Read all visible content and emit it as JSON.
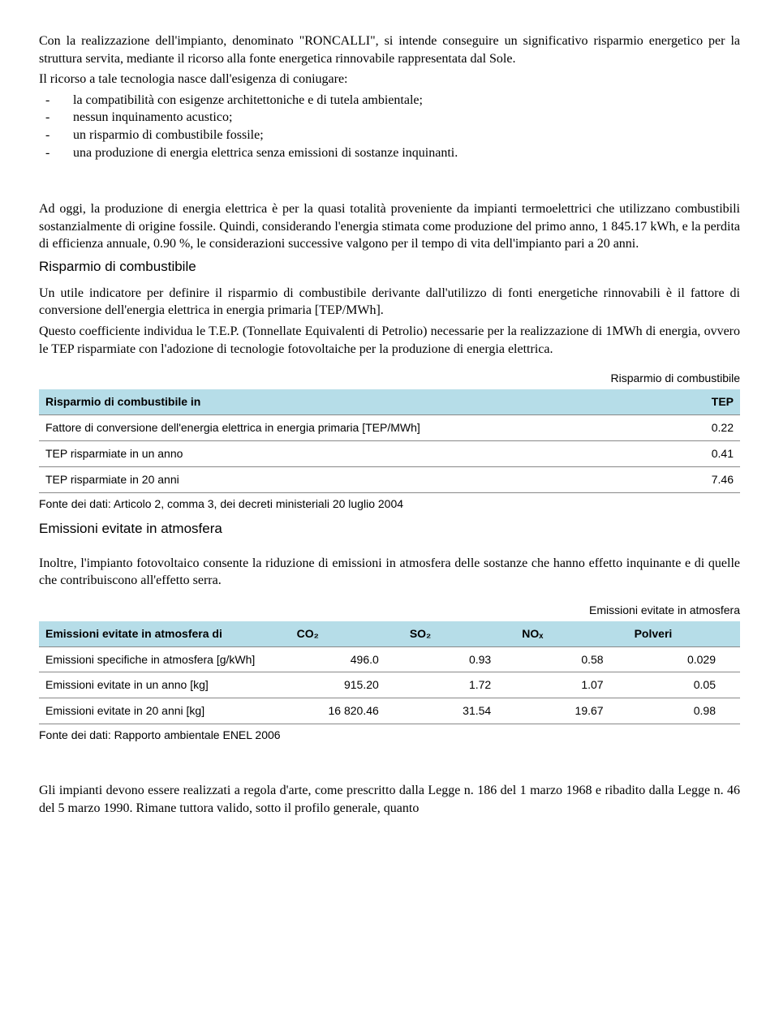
{
  "para1": "Con la realizzazione dell'impianto, denominato \"RONCALLI\", si intende conseguire un significativo risparmio energetico per la struttura servita, mediante il ricorso alla fonte energetica rinnovabile rappresentata dal Sole.",
  "para2": "Il ricorso a tale tecnologia nasce dall'esigenza di coniugare:",
  "bullets": [
    "la compatibilità con esigenze architettoniche e di tutela ambientale;",
    "nessun inquinamento acustico;",
    "un risparmio di combustibile fossile;",
    "una produzione di energia elettrica senza emissioni di sostanze inquinanti."
  ],
  "para3": "Ad oggi, la produzione di energia elettrica è per la quasi totalità proveniente da impianti termoelettrici che utilizzano combustibili sostanzialmente di origine fossile. Quindi, considerando l'energia stimata come produzione del primo anno, 1 845.17 kWh, e la perdita di efficienza annuale, 0.90 %, le considerazioni successive valgono per il tempo di vita dell'impianto pari a 20 anni.",
  "sec1_title": "Risparmio di combustibile",
  "para4a": "Un utile indicatore per definire il risparmio di combustibile derivante dall'utilizzo di fonti energetiche rinnovabili è il fattore di conversione dell'energia elettrica in energia primaria [TEP/MWh].",
  "para4b": "Questo coefficiente individua le T.E.P. (Tonnellate Equivalenti di Petrolio) necessarie per la realizzazione di 1MWh di energia, ovvero le TEP risparmiate con l'adozione di tecnologie fotovoltaiche per la produzione di energia elettrica.",
  "table1": {
    "caption": "Risparmio di combustibile",
    "header": {
      "c0": "Risparmio di combustibile in",
      "c1": "TEP"
    },
    "rows": [
      {
        "label": "Fattore di conversione dell'energia elettrica in energia primaria [TEP/MWh]",
        "val": "0.22"
      },
      {
        "label": "TEP risparmiate in un anno",
        "val": "0.41"
      },
      {
        "label": "TEP risparmiate in 20 anni",
        "val": "7.46"
      }
    ],
    "footnote": "Fonte dei dati: Articolo 2, comma 3, dei decreti ministeriali 20 luglio 2004"
  },
  "sec2_title": "Emissioni evitate in atmosfera",
  "para5": "Inoltre, l'impianto fotovoltaico consente la riduzione di emissioni in atmosfera delle sostanze che hanno effetto inquinante e di quelle che contribuiscono all'effetto serra.",
  "table2": {
    "caption": "Emissioni evitate in atmosfera",
    "header": {
      "c0": "Emissioni evitate in atmosfera di",
      "c1": "CO₂",
      "c2": "SO₂",
      "c3": "NOₓ",
      "c4": "Polveri"
    },
    "rows": [
      {
        "label": "Emissioni specifiche in atmosfera [g/kWh]",
        "v1": "496.0",
        "v2": "0.93",
        "v3": "0.58",
        "v4": "0.029"
      },
      {
        "label": "Emissioni evitate in un anno [kg]",
        "v1": "915.20",
        "v2": "1.72",
        "v3": "1.07",
        "v4": "0.05"
      },
      {
        "label": "Emissioni evitate in 20 anni [kg]",
        "v1": "16 820.46",
        "v2": "31.54",
        "v3": "19.67",
        "v4": "0.98"
      }
    ],
    "footnote": "Fonte dei dati: Rapporto ambientale ENEL 2006"
  },
  "para6": "Gli impianti devono essere realizzati a regola d'arte, come prescritto dalla Legge n. 186 del 1 marzo 1968 e ribadito dalla Legge n. 46 del 5 marzo 1990. Rimane tuttora valido, sotto il profilo generale, quanto"
}
